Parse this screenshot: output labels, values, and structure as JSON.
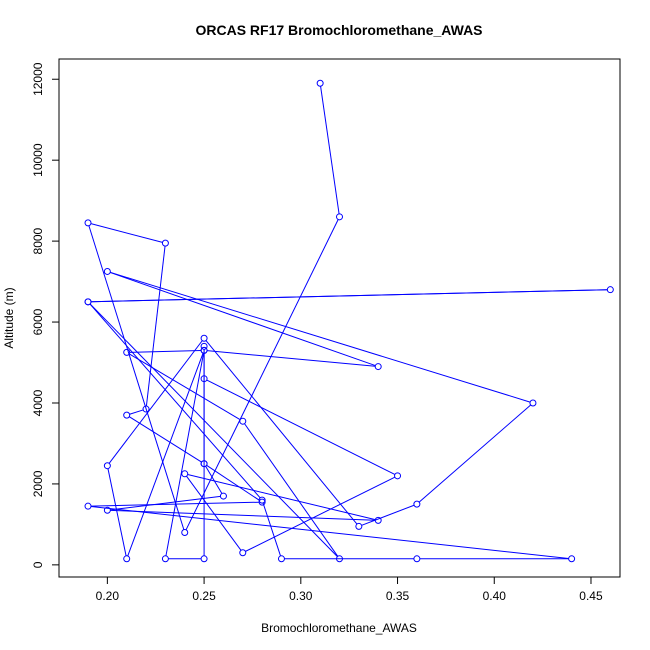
{
  "chart_data": {
    "type": "line",
    "title": "ORCAS RF17 Bromochloromethane_AWAS",
    "xlabel": "Bromochloromethane_AWAS",
    "ylabel": "Altitude (m)",
    "xlim": [
      0.175,
      0.465
    ],
    "ylim": [
      -300,
      12500
    ],
    "xticks": [
      0.2,
      0.25,
      0.3,
      0.35,
      0.4,
      0.45
    ],
    "xtick_labels": [
      "0.20",
      "0.25",
      "0.30",
      "0.35",
      "0.40",
      "0.45"
    ],
    "yticks": [
      0,
      2000,
      4000,
      6000,
      8000,
      10000,
      12000
    ],
    "ytick_labels": [
      "0",
      "2000",
      "4000",
      "6000",
      "8000",
      "10000",
      "12000"
    ],
    "grid": false,
    "legend": "none",
    "series": [
      {
        "color": "#0000ff",
        "marker": "open-circle",
        "x": [
          0.31,
          0.32,
          0.24,
          0.19,
          0.23,
          0.22,
          0.21,
          0.25,
          0.25,
          0.25,
          0.23,
          0.25,
          0.34,
          0.2,
          0.42,
          0.36,
          0.33,
          0.25,
          0.2,
          0.21,
          0.25,
          0.21,
          0.27,
          0.32,
          0.19,
          0.46,
          0.19,
          0.28,
          0.29,
          0.36,
          0.44,
          0.19,
          0.28,
          0.25,
          0.26,
          0.2,
          0.34,
          0.24,
          0.27,
          0.35,
          0.25
        ],
        "y": [
          11900,
          8600,
          800,
          8450,
          7950,
          3850,
          3700,
          2500,
          5400,
          150,
          150,
          5300,
          4900,
          7250,
          4000,
          1500,
          950,
          5600,
          2450,
          150,
          5300,
          5250,
          3550,
          150,
          6500,
          6800,
          6500,
          1600,
          150,
          150,
          150,
          1450,
          1550,
          2500,
          1700,
          1350,
          1100,
          2250,
          300,
          2200,
          4600
        ]
      }
    ]
  }
}
